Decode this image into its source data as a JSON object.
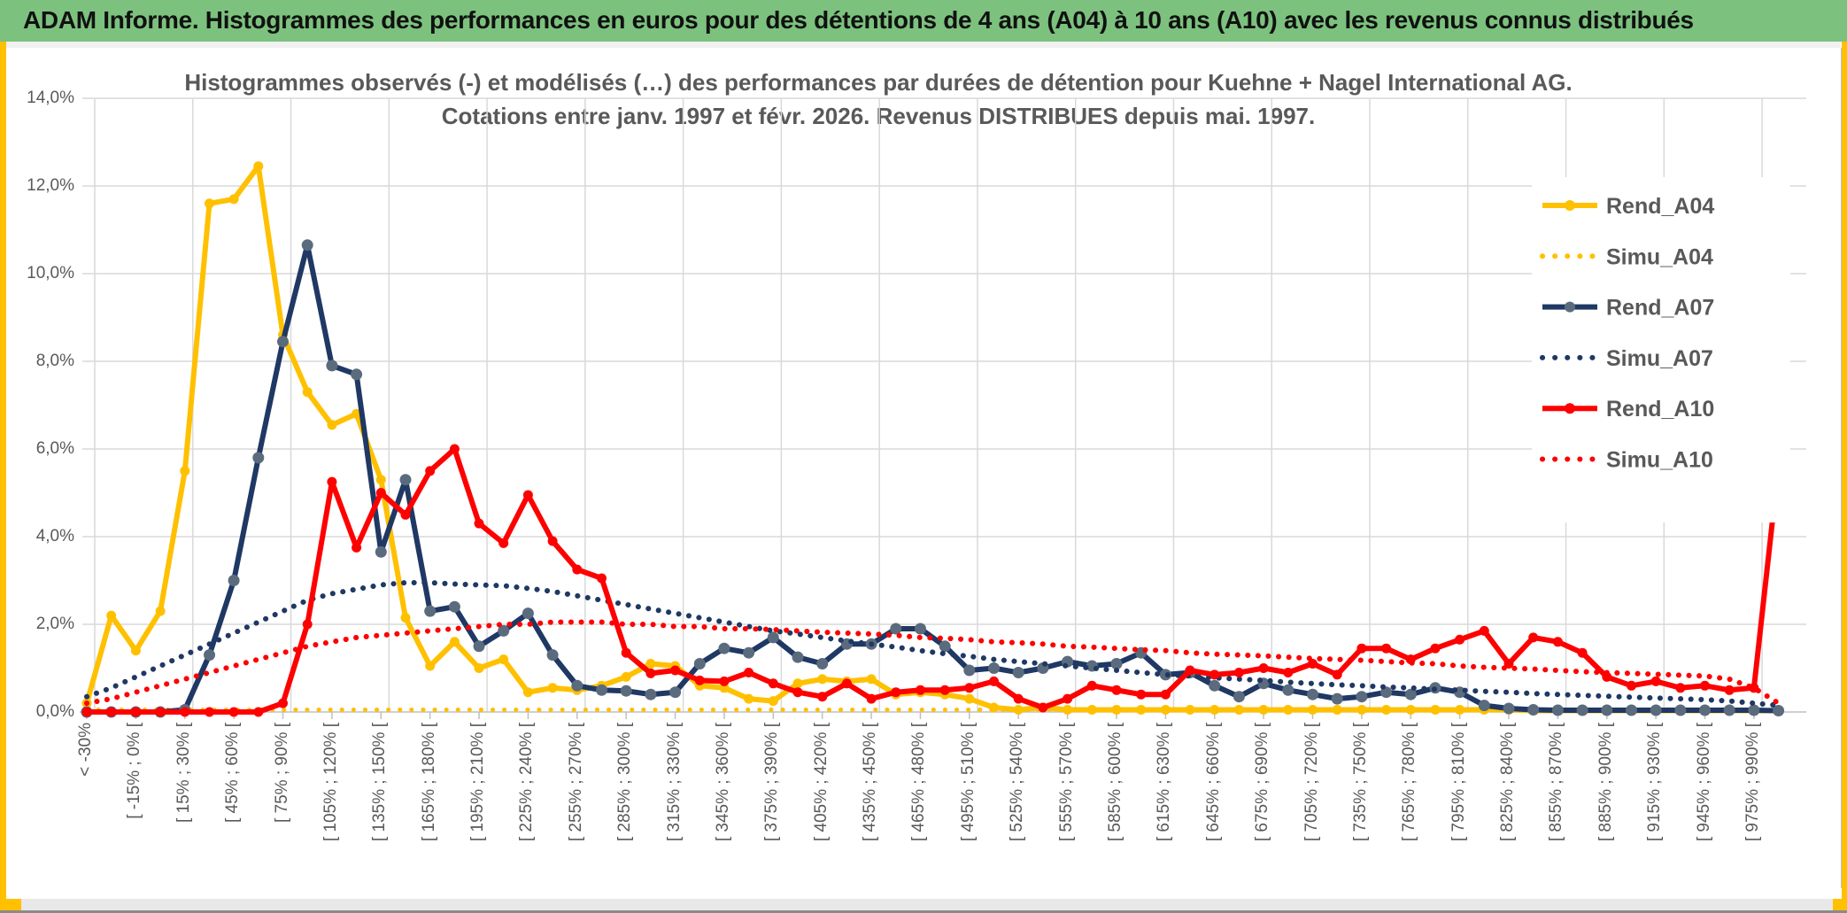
{
  "header": {
    "title": "ADAM Informe. Histogrammes des performances en euros pour des détentions de 4 ans (A04) à 10 ans (A10) avec les revenus connus distribués"
  },
  "colors": {
    "header_green": "#7CC27E",
    "accent_gold": "#FFC000",
    "navy": "#1F3864",
    "navy_marker": "#5B6B7E",
    "red": "#FF0000",
    "grid": "#D9D9D9",
    "axis_line": "#BFBFBF",
    "text_gray": "#595959"
  },
  "chart_data": {
    "type": "line",
    "title_line1": "Histogrammes observés (-) et modélisés (…) des performances par durées de détention pour Kuehne + Nagel International AG.",
    "title_line2": "Cotations entre janv. 1997 et févr. 2026. Revenus DISTRIBUES depuis mai. 1997.",
    "grid": true,
    "legend_position": "right-inside",
    "ylim": [
      0,
      14
    ],
    "y_ticks": [
      "0,0%",
      "2,0%",
      "4,0%",
      "6,0%",
      "8,0%",
      "10,0%",
      "12,0%",
      "14,0%"
    ],
    "bin_width_pct": 15,
    "labels_every_n_bins": 2,
    "x_tick_labels": [
      "< -30%",
      "[ -15% ; 0% [",
      "[ 15% ; 30% [",
      "[ 45% ; 60% [",
      "[ 75% ; 90% [",
      "[ 105% ; 120% [",
      "[ 135% ; 150% [",
      "[ 165% ; 180% [",
      "[ 195% ; 210% [",
      "[ 225% ; 240% [",
      "[ 255% ; 270% [",
      "[ 285% ; 300% [",
      "[ 315% ; 330% [",
      "[ 345% ; 360% [",
      "[ 375% ; 390% [",
      "[ 405% ; 420% [",
      "[ 435% ; 450% [",
      "[ 465% ; 480% [",
      "[ 495% ; 510% [",
      "[ 525% ; 540% [",
      "[ 555% ; 570% [",
      "[ 585% ; 600% [",
      "[ 615% ; 630% [",
      "[ 645% ; 660% [",
      "[ 675% ; 690% [",
      "[ 705% ; 720% [",
      "[ 735% ; 750% [",
      "[ 765% ; 780% [",
      "[ 795% ; 810% [",
      "[ 825% ; 840% [",
      "[ 855% ; 870% [",
      "[ 885% ; 900% [",
      "[ 915% ; 930% [",
      "[ 945% ; 960% [",
      "[ 975% ; 990% ["
    ],
    "series": [
      {
        "name": "Rend_A04",
        "style": "solid",
        "color": "#FFC000",
        "marker_color": "#FFC000",
        "values": [
          0.2,
          2.2,
          1.4,
          2.3,
          5.5,
          11.6,
          11.7,
          12.45,
          8.6,
          7.3,
          6.55,
          6.8,
          5.3,
          2.15,
          1.05,
          1.6,
          1.0,
          1.2,
          0.45,
          0.55,
          0.5,
          0.6,
          0.8,
          1.1,
          1.05,
          0.6,
          0.55,
          0.3,
          0.25,
          0.65,
          0.75,
          0.7,
          0.75,
          0.4,
          0.45,
          0.4,
          0.3,
          0.1,
          0.05,
          0.1,
          0.05,
          0.05,
          0.05,
          0.05,
          0.05,
          0.05,
          0.05,
          0.05,
          0.05,
          0.05,
          0.05,
          0.05,
          0.05,
          0.05,
          0.05,
          0.05,
          0.05,
          0.05,
          0.05,
          0.03,
          0.03,
          0.03,
          0.03,
          0.03,
          0.03,
          0.03,
          0.03,
          0.03,
          0.03,
          0.03
        ]
      },
      {
        "name": "Simu_A04",
        "style": "dotted",
        "color": "#FFC000",
        "values": [
          0.05,
          0.05,
          0.05,
          0.05,
          0.05,
          0.05,
          0.05,
          0.05,
          0.05,
          0.05,
          0.05,
          0.05,
          0.05,
          0.05,
          0.05,
          0.05,
          0.05,
          0.05,
          0.05,
          0.05,
          0.05,
          0.05,
          0.05,
          0.05,
          0.05,
          0.05,
          0.05,
          0.05,
          0.05,
          0.05,
          0.05,
          0.05,
          0.05,
          0.05,
          0.05,
          0.05,
          0.05,
          0.05,
          0.05,
          0.05,
          0.05,
          0.05,
          0.05,
          0.05,
          0.05,
          0.05,
          0.05,
          0.05,
          0.05,
          0.05,
          0.05,
          0.05,
          0.05,
          0.05,
          0.05,
          0.05,
          0.05,
          0.05,
          0.03,
          0.03,
          0.03,
          0.03,
          0.03,
          0.03,
          0.03,
          0.03,
          0.03,
          0.03,
          0.03,
          0.03
        ]
      },
      {
        "name": "Rend_A07",
        "style": "solid",
        "color": "#1F3864",
        "marker_color": "#5B6B7E",
        "values": [
          0,
          0,
          0,
          0,
          0.05,
          1.3,
          3.0,
          5.8,
          8.45,
          10.65,
          7.9,
          7.7,
          3.65,
          5.3,
          2.3,
          2.4,
          1.5,
          1.85,
          2.25,
          1.3,
          0.6,
          0.5,
          0.48,
          0.4,
          0.45,
          1.1,
          1.45,
          1.35,
          1.7,
          1.25,
          1.1,
          1.55,
          1.55,
          1.9,
          1.9,
          1.5,
          0.95,
          1.0,
          0.9,
          1.0,
          1.15,
          1.05,
          1.1,
          1.35,
          0.85,
          0.9,
          0.6,
          0.35,
          0.65,
          0.5,
          0.4,
          0.3,
          0.35,
          0.45,
          0.4,
          0.55,
          0.45,
          0.15,
          0.08,
          0.05,
          0.04,
          0.04,
          0.04,
          0.04,
          0.04,
          0.04,
          0.04,
          0.04,
          0.04,
          0.03
        ]
      },
      {
        "name": "Simu_A07",
        "style": "dotted",
        "color": "#1F3864",
        "values": [
          0.35,
          0.55,
          0.8,
          1.05,
          1.3,
          1.55,
          1.8,
          2.05,
          2.3,
          2.55,
          2.7,
          2.8,
          2.9,
          2.95,
          2.95,
          2.92,
          2.9,
          2.88,
          2.82,
          2.75,
          2.65,
          2.55,
          2.45,
          2.35,
          2.25,
          2.15,
          2.05,
          1.95,
          1.85,
          1.78,
          1.7,
          1.62,
          1.55,
          1.48,
          1.4,
          1.33,
          1.27,
          1.2,
          1.15,
          1.1,
          1.05,
          1.0,
          0.95,
          0.9,
          0.85,
          0.82,
          0.78,
          0.75,
          0.72,
          0.68,
          0.65,
          0.62,
          0.6,
          0.57,
          0.55,
          0.52,
          0.5,
          0.47,
          0.45,
          0.42,
          0.4,
          0.38,
          0.36,
          0.34,
          0.32,
          0.3,
          0.28,
          0.25,
          0.2,
          0.15
        ]
      },
      {
        "name": "Rend_A10",
        "style": "solid",
        "color": "#FF0000",
        "marker_color": "#FF0000",
        "values": [
          0,
          0,
          0,
          0,
          0,
          0,
          0,
          0,
          0.2,
          2.0,
          5.25,
          3.75,
          5.0,
          4.5,
          5.5,
          6.0,
          4.3,
          3.85,
          4.95,
          3.9,
          3.25,
          3.05,
          1.35,
          0.88,
          0.95,
          0.72,
          0.7,
          0.9,
          0.65,
          0.45,
          0.35,
          0.65,
          0.3,
          0.45,
          0.5,
          0.5,
          0.55,
          0.7,
          0.3,
          0.1,
          0.3,
          0.6,
          0.5,
          0.4,
          0.4,
          0.95,
          0.85,
          0.9,
          1.0,
          0.9,
          1.1,
          0.85,
          1.45,
          1.45,
          1.2,
          1.45,
          1.65,
          1.85,
          1.1,
          1.7,
          1.6,
          1.35,
          0.8,
          0.6,
          0.7,
          0.55,
          0.6,
          0.5,
          0.55,
          5.6
        ]
      },
      {
        "name": "Simu_A10",
        "style": "dotted",
        "color": "#FF0000",
        "values": [
          0.2,
          0.3,
          0.45,
          0.6,
          0.75,
          0.9,
          1.05,
          1.2,
          1.35,
          1.5,
          1.6,
          1.7,
          1.75,
          1.8,
          1.85,
          1.9,
          1.95,
          2.0,
          2.0,
          2.05,
          2.05,
          2.05,
          2.0,
          2.0,
          1.95,
          1.95,
          1.9,
          1.9,
          1.88,
          1.85,
          1.82,
          1.8,
          1.78,
          1.75,
          1.7,
          1.68,
          1.65,
          1.6,
          1.58,
          1.55,
          1.5,
          1.48,
          1.45,
          1.42,
          1.4,
          1.35,
          1.32,
          1.3,
          1.28,
          1.25,
          1.22,
          1.2,
          1.18,
          1.15,
          1.12,
          1.1,
          1.05,
          1.02,
          1.0,
          0.98,
          0.95,
          0.92,
          0.9,
          0.88,
          0.86,
          0.84,
          0.82,
          0.75,
          0.55,
          0.2
        ]
      }
    ]
  }
}
